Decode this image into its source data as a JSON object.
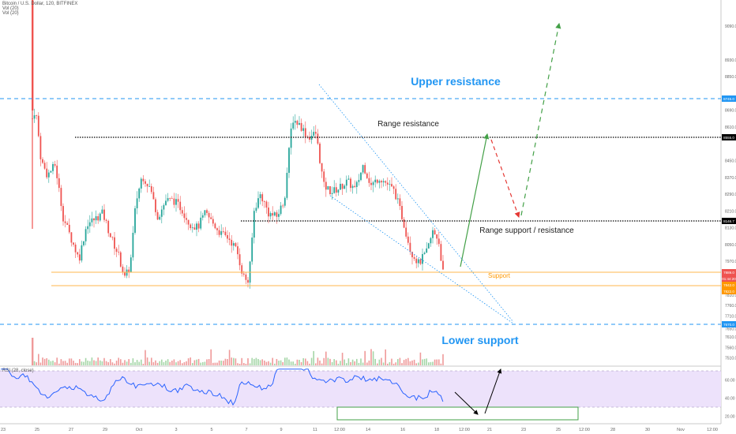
{
  "chart_data": {
    "type": "candlestick",
    "legend_lines": [
      "Bitcoin / U.S. Dollar, 120, BITFINEX",
      "Vol (20)",
      "Vol (20)"
    ],
    "rsi_label": "RSI (28, close)",
    "price_axis": {
      "ylim": [
        7500,
        9270
      ],
      "ticks": [
        "9250.0",
        "9090.0",
        "8930.0",
        "8850.0",
        "8690.0",
        "8610.0",
        "8450.0",
        "8370.0",
        "8290.0",
        "8210.0",
        "8130.0",
        "8050.0",
        "7970.0",
        "7890.0",
        "7810.0",
        "7760.0",
        "7710.0",
        "7650.0",
        "7610.0",
        "7560.0",
        "7510.0"
      ]
    },
    "price_badges": [
      {
        "value": "8745.0",
        "price": 8745,
        "color": "#2196f3"
      },
      {
        "value": "8555.0",
        "price": 8555,
        "color": "#000000"
      },
      {
        "value": "8146.7",
        "price": 8146.7,
        "color": "#000000"
      },
      {
        "value": "7889.0",
        "price": 7889,
        "color": "#ef5350"
      },
      {
        "value": "01:44:20",
        "price": 7862,
        "color": "#ef5350"
      },
      {
        "value": "7842.0",
        "price": 7842,
        "color": "#ff9800"
      },
      {
        "value": "7822.0",
        "price": 7822,
        "color": "#ff9800"
      },
      {
        "value": "7670.0",
        "price": 7670,
        "color": "#2196f3"
      }
    ],
    "rsi_axis": {
      "ylim": [
        10,
        80
      ],
      "ticks": [
        "60.00",
        "40.00",
        "20.00"
      ]
    },
    "x_axis_labels": [
      "23",
      "25",
      "27",
      "29",
      "Oct",
      "3",
      "5",
      "7",
      "9",
      "11",
      "12:00",
      "14",
      "16",
      "18",
      "12:00",
      "21",
      "23",
      "25",
      "12:00",
      "28",
      "30",
      "Nov",
      "12:00"
    ],
    "levels": [
      {
        "name": "Upper resistance",
        "price": 8745,
        "style": "dashed",
        "color": "#2196f3"
      },
      {
        "name": "Range resistance",
        "price": 8555,
        "style": "dotted",
        "color": "#000000"
      },
      {
        "name": "Range support / resistance",
        "price": 8146.7,
        "style": "dotted",
        "color": "#000000"
      },
      {
        "name": "Support",
        "price_top": 7889,
        "price_bottom": 7822,
        "style": "solid",
        "color": "#ff9800"
      },
      {
        "name": "Lower support",
        "price": 7670,
        "style": "dashed",
        "color": "#2196f3"
      }
    ],
    "annotations": {
      "upper_resistance": "Upper resistance",
      "range_resistance": "Range resistance",
      "range_support": "Range support / resistance",
      "support": "Support",
      "lower_support": "Lower support"
    },
    "colors": {
      "up": "#26a69a",
      "down": "#ef5350",
      "rsi": "#2962ff",
      "rsi_band": "#ede2fb",
      "fib_fan": "#2196f3",
      "forecast_up": "#43a047",
      "forecast_down": "#e53935",
      "box": "#43a047"
    }
  }
}
